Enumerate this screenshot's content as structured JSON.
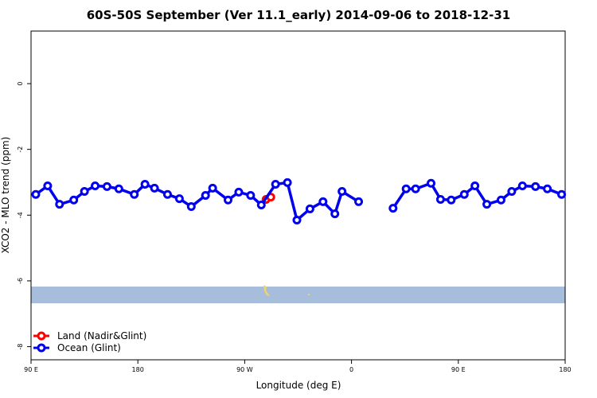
{
  "chart_data": {
    "type": "line",
    "title": "60S-50S September (Ver 11.1_early)   2014-09-06 to 2018-12-31",
    "xlabel": "Longitude (deg E)",
    "ylabel": "XCO2 - MLO trend (ppm)",
    "xlim": [
      90,
      540
    ],
    "ylim": [
      -8.4,
      1.6
    ],
    "xticks": [
      {
        "value": 90,
        "label": "90 E"
      },
      180,
      {
        "value": 270,
        "label": "90 W"
      },
      {
        "value": 360,
        "label": "0"
      },
      {
        "value": 450,
        "label": "90 E"
      },
      {
        "value": 540,
        "label": "180"
      }
    ],
    "yticks": [
      -8,
      -6,
      -4,
      -2,
      0
    ],
    "legend": "bottom-left",
    "series": [
      {
        "name": "Land (Nadir&Glint)",
        "color": "#ff0000",
        "x": [
          288,
          292
        ],
        "values": [
          -3.52,
          -3.45
        ]
      },
      {
        "name": "Ocean (Glint)",
        "color": "#0000ee",
        "x": [
          94,
          104,
          114,
          126,
          135,
          144,
          154,
          164,
          177,
          186,
          194,
          205,
          215,
          225,
          237,
          243,
          256,
          265,
          275,
          284,
          296,
          306,
          314,
          325,
          336,
          346,
          352,
          366,
          380,
          395,
          406,
          414,
          427,
          435,
          444,
          455,
          464,
          474,
          486,
          495,
          504,
          515,
          525,
          537
        ],
        "values": [
          -3.37,
          -3.11,
          -3.67,
          -3.54,
          -3.28,
          -3.11,
          -3.13,
          -3.2,
          -3.37,
          -3.06,
          -3.18,
          -3.37,
          -3.5,
          -3.74,
          -3.4,
          -3.18,
          -3.54,
          -3.3,
          -3.4,
          -3.69,
          -3.06,
          -3.01,
          -4.15,
          -3.81,
          -3.59,
          -3.96,
          -3.28,
          -3.59,
          null,
          -3.79,
          -3.2,
          -3.2,
          -3.03,
          -3.52,
          -3.54,
          -3.37,
          -3.11,
          -3.67,
          -3.54,
          -3.28,
          -3.11,
          -3.13,
          -3.2,
          -3.37
        ]
      }
    ]
  }
}
